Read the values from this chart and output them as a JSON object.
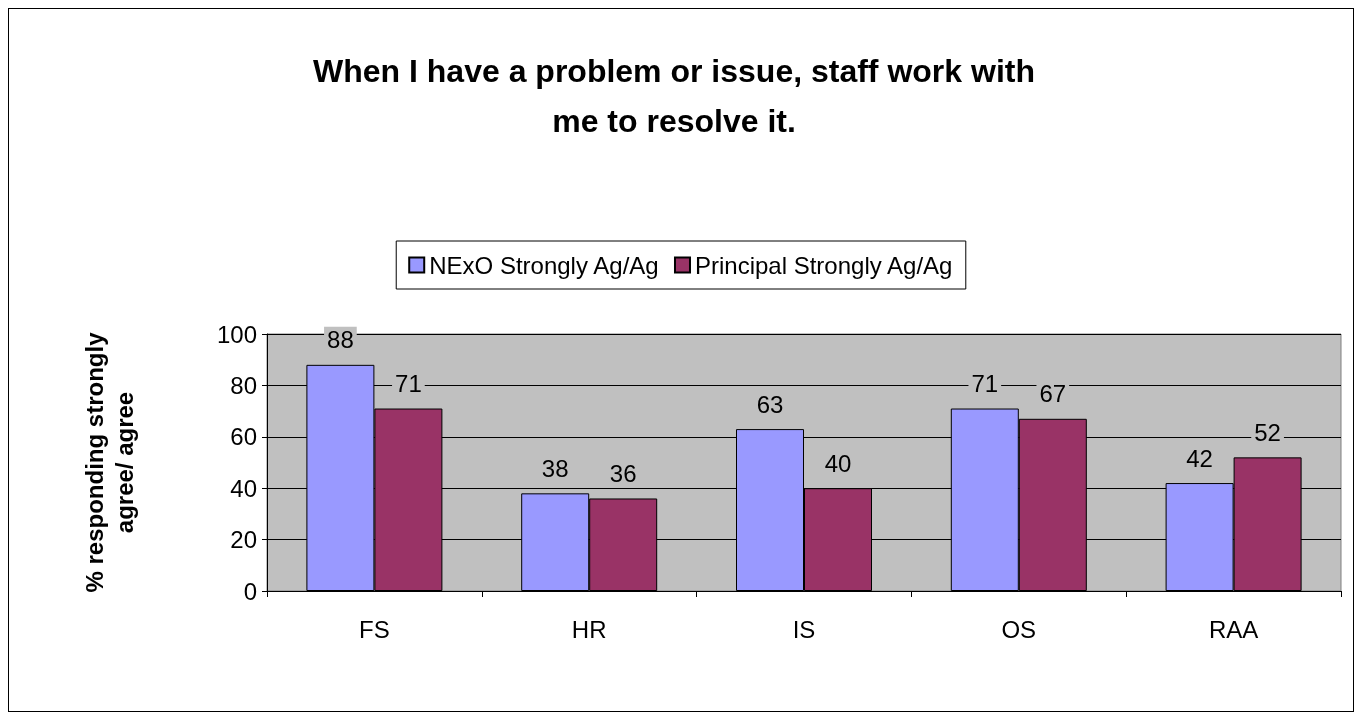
{
  "chart_data": {
    "type": "bar",
    "title": "When I have a problem or issue, staff work with\nme to resolve it.",
    "ylabel": "% responding strongly\nagree/ agree",
    "categories": [
      "FS",
      "HR",
      "IS",
      "OS",
      "RAA"
    ],
    "series": [
      {
        "name": "NExO Strongly Ag/Ag",
        "color": "#9999ff",
        "values": [
          88,
          38,
          63,
          71,
          42
        ]
      },
      {
        "name": "Principal Strongly Ag/Ag",
        "color": "#993366",
        "values": [
          71,
          36,
          40,
          67,
          52
        ]
      }
    ],
    "ylim": [
      0,
      100
    ],
    "yticks": [
      0,
      20,
      40,
      60,
      80,
      100
    ],
    "grid": "y",
    "legend": "top",
    "data_labels": true
  }
}
